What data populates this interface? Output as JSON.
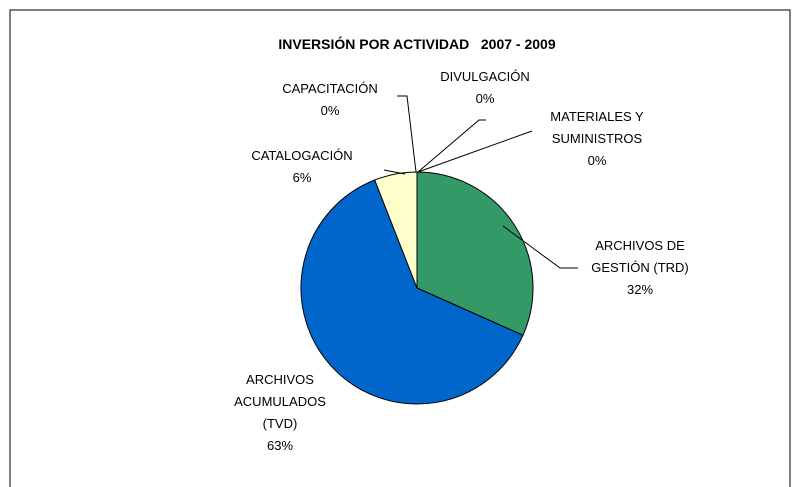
{
  "chart_data": {
    "type": "pie",
    "title": "INVERSIÓN POR ACTIVIDAD   2007 - 2009",
    "categories": [
      "ARCHIVOS DE\nGESTIÓN (TRD)",
      "ARCHIVOS\nACUMULADOS\n(TVD)",
      "CATALOGACIÓN",
      "CAPACITACIÓN",
      "DIVULGACIÓN",
      "MATERIALES Y\nSUMINISTROS"
    ],
    "values": [
      32,
      63,
      6,
      0,
      0,
      0
    ],
    "value_labels": [
      "32%",
      "63%",
      "6%",
      "0%",
      "0%",
      "0%"
    ],
    "colors": [
      "#339966",
      "#0066cc",
      "#ffffcc",
      "#ff99cc",
      "#99ccff",
      "#cc99ff"
    ]
  }
}
